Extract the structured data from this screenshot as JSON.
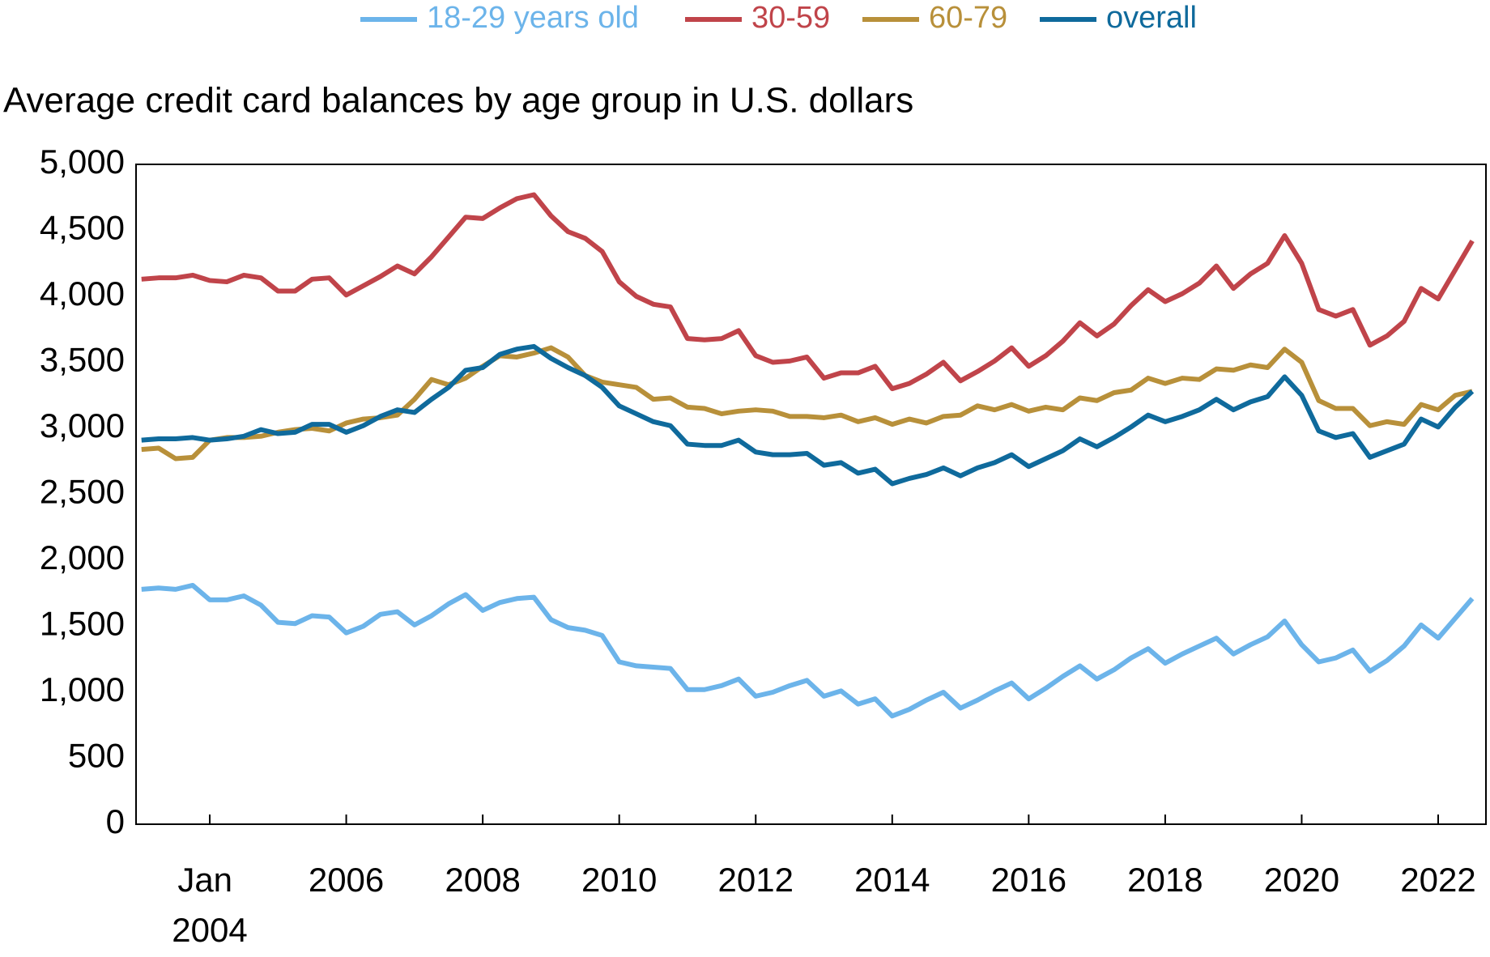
{
  "chart_data": {
    "type": "line",
    "title": "Average credit card balances by age group in U.S. dollars",
    "x": [
      2003,
      2003.25,
      2003.5,
      2003.75,
      2004,
      2004.25,
      2004.5,
      2004.75,
      2005,
      2005.25,
      2005.5,
      2005.75,
      2006,
      2006.25,
      2006.5,
      2006.75,
      2007,
      2007.25,
      2007.5,
      2007.75,
      2008,
      2008.25,
      2008.5,
      2008.75,
      2009,
      2009.25,
      2009.5,
      2009.75,
      2010,
      2010.25,
      2010.5,
      2010.75,
      2011,
      2011.25,
      2011.5,
      2011.75,
      2012,
      2012.25,
      2012.5,
      2012.75,
      2013,
      2013.25,
      2013.5,
      2013.75,
      2014,
      2014.25,
      2014.5,
      2014.75,
      2015,
      2015.25,
      2015.5,
      2015.75,
      2016,
      2016.25,
      2016.5,
      2016.75,
      2017,
      2017.25,
      2017.5,
      2017.75,
      2018,
      2018.25,
      2018.5,
      2018.75,
      2019,
      2019.25,
      2019.5,
      2019.75,
      2020,
      2020.25,
      2020.5,
      2020.75,
      2021,
      2021.25,
      2021.5,
      2021.75,
      2022,
      2022.25,
      2022.5
    ],
    "series": [
      {
        "name": "18-29 years old",
        "color": "#6cb4ea",
        "values": [
          1780,
          1790,
          1780,
          1810,
          1700,
          1700,
          1730,
          1660,
          1530,
          1520,
          1580,
          1570,
          1450,
          1500,
          1590,
          1610,
          1510,
          1580,
          1670,
          1740,
          1620,
          1680,
          1710,
          1720,
          1550,
          1490,
          1470,
          1430,
          1230,
          1200,
          1190,
          1180,
          1020,
          1020,
          1050,
          1100,
          970,
          1000,
          1050,
          1090,
          970,
          1010,
          910,
          950,
          820,
          870,
          940,
          1000,
          880,
          940,
          1010,
          1070,
          950,
          1030,
          1120,
          1200,
          1100,
          1170,
          1260,
          1330,
          1220,
          1290,
          1350,
          1410,
          1290,
          1360,
          1420,
          1540,
          1360,
          1230,
          1260,
          1320,
          1160,
          1240,
          1350,
          1510,
          1410,
          1560,
          1710
        ]
      },
      {
        "name": "30-59",
        "color": "#c0444a",
        "values": [
          4130,
          4140,
          4140,
          4160,
          4120,
          4110,
          4160,
          4140,
          4040,
          4040,
          4130,
          4140,
          4010,
          4080,
          4150,
          4230,
          4170,
          4300,
          4450,
          4600,
          4590,
          4670,
          4740,
          4770,
          4610,
          4490,
          4440,
          4340,
          4110,
          4000,
          3940,
          3920,
          3680,
          3670,
          3680,
          3740,
          3550,
          3500,
          3510,
          3540,
          3380,
          3420,
          3420,
          3470,
          3300,
          3340,
          3410,
          3500,
          3360,
          3430,
          3510,
          3610,
          3470,
          3550,
          3660,
          3800,
          3700,
          3790,
          3930,
          4050,
          3960,
          4020,
          4100,
          4230,
          4060,
          4170,
          4250,
          4460,
          4250,
          3900,
          3850,
          3900,
          3630,
          3700,
          3810,
          4060,
          3980,
          4200,
          4420
        ]
      },
      {
        "name": "60-79",
        "color": "#b8903a",
        "values": [
          2840,
          2850,
          2770,
          2780,
          2910,
          2930,
          2930,
          2940,
          2970,
          2990,
          3000,
          2980,
          3040,
          3070,
          3080,
          3100,
          3220,
          3370,
          3330,
          3380,
          3470,
          3550,
          3540,
          3570,
          3610,
          3540,
          3400,
          3350,
          3330,
          3310,
          3220,
          3230,
          3160,
          3150,
          3110,
          3130,
          3140,
          3130,
          3090,
          3090,
          3080,
          3100,
          3050,
          3080,
          3030,
          3070,
          3040,
          3090,
          3100,
          3170,
          3140,
          3180,
          3130,
          3160,
          3140,
          3230,
          3210,
          3270,
          3290,
          3380,
          3340,
          3380,
          3370,
          3450,
          3440,
          3480,
          3460,
          3600,
          3500,
          3210,
          3150,
          3150,
          3020,
          3050,
          3030,
          3180,
          3140,
          3250,
          3280
        ]
      },
      {
        "name": "overall",
        "color": "#0f6a9c",
        "values": [
          2910,
          2920,
          2920,
          2930,
          2910,
          2920,
          2940,
          2990,
          2960,
          2970,
          3030,
          3030,
          2970,
          3020,
          3090,
          3140,
          3120,
          3220,
          3310,
          3440,
          3460,
          3560,
          3600,
          3620,
          3530,
          3460,
          3400,
          3310,
          3170,
          3110,
          3050,
          3020,
          2880,
          2870,
          2870,
          2910,
          2820,
          2800,
          2800,
          2810,
          2720,
          2740,
          2660,
          2690,
          2580,
          2620,
          2650,
          2700,
          2640,
          2700,
          2740,
          2800,
          2710,
          2770,
          2830,
          2920,
          2860,
          2930,
          3010,
          3100,
          3050,
          3090,
          3140,
          3220,
          3140,
          3200,
          3240,
          3390,
          3250,
          2980,
          2930,
          2960,
          2780,
          2830,
          2880,
          3070,
          3010,
          3160,
          3280
        ]
      }
    ],
    "xlim": [
      2002.92,
      2022.7
    ],
    "xticks": [
      {
        "value": 2004,
        "label": "Jan 2004"
      },
      2006,
      2008,
      2010,
      2012,
      2014,
      2016,
      2018,
      2020,
      2022
    ],
    "ylim": [
      0,
      5000
    ],
    "yticks": [
      0,
      {
        "value": 500,
        "label": "500"
      },
      {
        "value": 1000,
        "label": "1,000"
      },
      {
        "value": 1500,
        "label": "1,500"
      },
      {
        "value": 2000,
        "label": "2,000"
      },
      {
        "value": 2500,
        "label": "2,500"
      },
      {
        "value": 3000,
        "label": "3,000"
      },
      {
        "value": 3500,
        "label": "3,500"
      },
      {
        "value": 4000,
        "label": "4,000"
      },
      {
        "value": 4500,
        "label": "4,500"
      },
      {
        "value": 5000,
        "label": "5,000"
      }
    ],
    "grid": false,
    "legend": "top"
  }
}
